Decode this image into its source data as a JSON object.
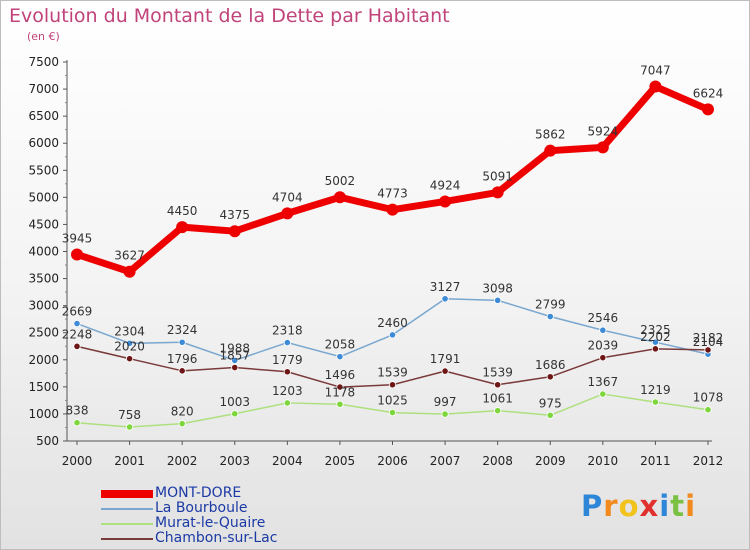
{
  "chart_data": {
    "type": "line",
    "title": "Evolution du Montant de la Dette par Habitant",
    "unit_label": "(en €)",
    "x": [
      "2000",
      "2001",
      "2002",
      "2003",
      "2004",
      "2005",
      "2006",
      "2007",
      "2008",
      "2009",
      "2010",
      "2011",
      "2012"
    ],
    "ylim": [
      500,
      7500
    ],
    "yticks": [
      500,
      1000,
      1500,
      2000,
      2500,
      3000,
      3500,
      4000,
      4500,
      5000,
      5500,
      6000,
      6500,
      7000,
      7500
    ],
    "grid": false,
    "legend_position": "bottom-left",
    "series": [
      {
        "name": "MONT-DORE",
        "color": "#ee0000",
        "marker_color": "#ee0000",
        "values": [
          3945,
          3627,
          4450,
          4375,
          4704,
          5002,
          4773,
          4924,
          5091,
          5862,
          5924,
          7047,
          6624
        ]
      },
      {
        "name": "La Bourboule",
        "color": "#7aa7cf",
        "marker_color": "#3d8ad6",
        "values": [
          2669,
          2304,
          2324,
          1988,
          2318,
          2058,
          2460,
          3127,
          3098,
          2799,
          2546,
          2325,
          2104
        ]
      },
      {
        "name": "Murat-le-Quaire",
        "color": "#aee07f",
        "marker_color": "#7dd63c",
        "values": [
          838,
          758,
          820,
          1003,
          1203,
          1178,
          1025,
          997,
          1061,
          975,
          1367,
          1219,
          1078
        ]
      },
      {
        "name": "Chambon-sur-Lac",
        "color": "#7a3a3a",
        "marker_color": "#6e1616",
        "values": [
          2248,
          2020,
          1796,
          1857,
          1779,
          1496,
          1539,
          1791,
          1539,
          1686,
          2039,
          2202,
          2182
        ]
      }
    ]
  },
  "brand": {
    "letters": [
      {
        "ch": "P",
        "color": "#2e86d8"
      },
      {
        "ch": "r",
        "color": "#f28a1d"
      },
      {
        "ch": "o",
        "color": "#f2c21d"
      },
      {
        "ch": "x",
        "color": "#e0312f"
      },
      {
        "ch": "i",
        "color": "#2e86d8"
      },
      {
        "ch": "t",
        "color": "#7ac143"
      },
      {
        "ch": "i",
        "color": "#f28a1d"
      }
    ]
  }
}
